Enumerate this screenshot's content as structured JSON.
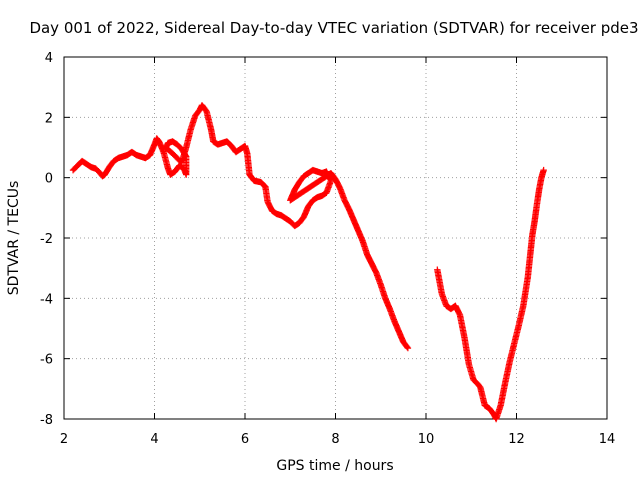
{
  "chart_data": {
    "type": "scatter",
    "title": "Day 001 of 2022, Sidereal Day-to-day VTEC variation (SDTVAR) for receiver pde3",
    "xlabel": "GPS time / hours",
    "ylabel": "SDTVAR / TECUs",
    "xlim": [
      2,
      14
    ],
    "ylim": [
      -8,
      4
    ],
    "xticks": [
      "2",
      "4",
      "6",
      "8",
      "10",
      "12",
      "14"
    ],
    "yticks": [
      "4",
      "2",
      "0",
      "-2",
      "-4",
      "-6",
      "-8"
    ],
    "grid": true,
    "marker": "plus",
    "color": "#ff0000",
    "series": [
      {
        "points": [
          [
            2.2,
            0.25
          ],
          [
            2.3,
            0.4
          ],
          [
            2.4,
            0.55
          ],
          [
            2.5,
            0.45
          ],
          [
            2.6,
            0.35
          ],
          [
            2.7,
            0.3
          ],
          [
            2.8,
            0.15
          ],
          [
            2.85,
            0.05
          ],
          [
            2.9,
            0.1
          ],
          [
            3.0,
            0.35
          ],
          [
            3.1,
            0.55
          ],
          [
            3.2,
            0.65
          ],
          [
            3.3,
            0.7
          ],
          [
            3.4,
            0.75
          ],
          [
            3.5,
            0.85
          ],
          [
            3.6,
            0.75
          ],
          [
            3.7,
            0.7
          ],
          [
            3.8,
            0.65
          ],
          [
            3.9,
            0.75
          ],
          [
            4.0,
            1.1
          ],
          [
            4.05,
            1.3
          ],
          [
            4.1,
            1.2
          ],
          [
            4.2,
            0.85
          ],
          [
            4.3,
            0.3
          ],
          [
            4.35,
            0.1
          ],
          [
            4.45,
            0.2
          ],
          [
            4.55,
            0.4
          ],
          [
            4.65,
            0.3
          ],
          [
            4.7,
            0.1
          ],
          [
            4.7,
            0.7
          ],
          [
            4.6,
            0.95
          ],
          [
            4.5,
            1.1
          ],
          [
            4.4,
            1.2
          ],
          [
            4.3,
            1.15
          ],
          [
            4.25,
            1.0
          ],
          [
            4.4,
            0.8
          ],
          [
            4.6,
            0.5
          ],
          [
            4.7,
            1.0
          ],
          [
            4.8,
            1.6
          ],
          [
            4.9,
            2.05
          ],
          [
            5.0,
            2.25
          ],
          [
            5.05,
            2.4
          ],
          [
            5.15,
            2.2
          ],
          [
            5.25,
            1.6
          ],
          [
            5.3,
            1.2
          ],
          [
            5.4,
            1.1
          ],
          [
            5.5,
            1.15
          ],
          [
            5.6,
            1.2
          ],
          [
            5.7,
            1.05
          ],
          [
            5.8,
            0.85
          ],
          [
            5.9,
            0.95
          ],
          [
            6.0,
            1.05
          ],
          [
            6.05,
            0.8
          ],
          [
            6.1,
            0.1
          ],
          [
            6.2,
            -0.1
          ],
          [
            6.35,
            -0.15
          ],
          [
            6.45,
            -0.3
          ],
          [
            6.5,
            -0.8
          ],
          [
            6.6,
            -1.1
          ],
          [
            6.7,
            -1.2
          ],
          [
            6.8,
            -1.25
          ],
          [
            6.9,
            -1.35
          ],
          [
            7.0,
            -1.45
          ],
          [
            7.1,
            -1.6
          ],
          [
            7.2,
            -1.5
          ],
          [
            7.3,
            -1.3
          ],
          [
            7.4,
            -0.95
          ],
          [
            7.5,
            -0.75
          ],
          [
            7.6,
            -0.65
          ],
          [
            7.7,
            -0.6
          ],
          [
            7.8,
            -0.5
          ],
          [
            7.9,
            -0.1
          ],
          [
            7.8,
            0.2
          ],
          [
            7.7,
            0.15
          ],
          [
            7.6,
            0.2
          ],
          [
            7.5,
            0.25
          ],
          [
            7.4,
            0.15
          ],
          [
            7.3,
            0.05
          ],
          [
            7.2,
            -0.15
          ],
          [
            7.1,
            -0.4
          ],
          [
            7.0,
            -0.75
          ],
          [
            7.9,
            0.15
          ],
          [
            8.0,
            -0.05
          ],
          [
            8.1,
            -0.35
          ],
          [
            8.2,
            -0.75
          ],
          [
            8.3,
            -1.05
          ],
          [
            8.4,
            -1.4
          ],
          [
            8.5,
            -1.75
          ],
          [
            8.6,
            -2.1
          ],
          [
            8.7,
            -2.55
          ],
          [
            8.8,
            -2.85
          ],
          [
            8.9,
            -3.15
          ],
          [
            9.0,
            -3.55
          ],
          [
            9.1,
            -4.0
          ],
          [
            9.2,
            -4.35
          ],
          [
            9.3,
            -4.75
          ],
          [
            9.4,
            -5.1
          ],
          [
            9.5,
            -5.45
          ],
          [
            9.6,
            -5.65
          ]
        ]
      },
      {
        "points": [
          [
            10.25,
            -3.05
          ],
          [
            10.35,
            -3.85
          ],
          [
            10.45,
            -4.25
          ],
          [
            10.55,
            -4.35
          ],
          [
            10.65,
            -4.25
          ],
          [
            10.75,
            -4.55
          ],
          [
            10.85,
            -5.3
          ],
          [
            10.95,
            -6.2
          ],
          [
            11.05,
            -6.7
          ],
          [
            11.15,
            -6.85
          ],
          [
            11.2,
            -6.95
          ],
          [
            11.3,
            -7.55
          ],
          [
            11.4,
            -7.65
          ],
          [
            11.5,
            -7.85
          ],
          [
            11.55,
            -8.0
          ],
          [
            11.65,
            -7.55
          ],
          [
            11.75,
            -6.8
          ],
          [
            11.85,
            -6.1
          ],
          [
            11.95,
            -5.5
          ],
          [
            12.05,
            -4.9
          ],
          [
            12.15,
            -4.25
          ],
          [
            12.25,
            -3.3
          ],
          [
            12.3,
            -2.6
          ],
          [
            12.35,
            -1.9
          ],
          [
            12.4,
            -1.45
          ],
          [
            12.45,
            -0.9
          ],
          [
            12.5,
            -0.4
          ],
          [
            12.55,
            0.0
          ],
          [
            12.6,
            0.25
          ]
        ]
      }
    ]
  }
}
